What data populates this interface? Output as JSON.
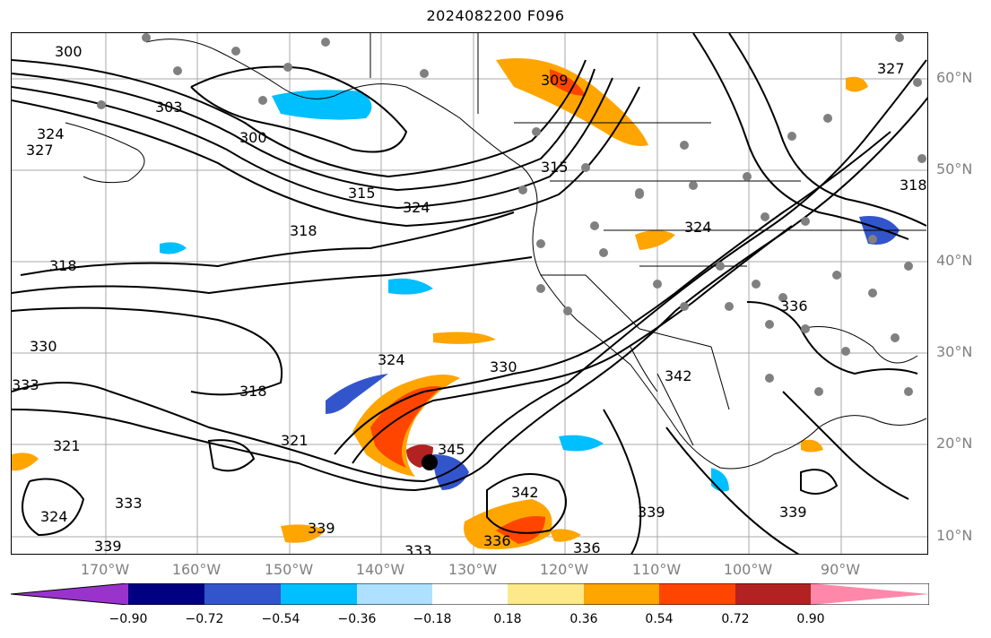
{
  "title": "2024082200 F096",
  "lat_labels": [
    "60°N",
    "50°N",
    "40°N",
    "30°N",
    "20°N",
    "10°N"
  ],
  "lon_labels": [
    "170°W",
    "160°W",
    "150°W",
    "140°W",
    "130°W",
    "120°W",
    "110°W",
    "100°W",
    "90°W"
  ],
  "contour_labels": [
    "300",
    "300",
    "303",
    "309",
    "315",
    "318",
    "318",
    "318",
    "321",
    "321",
    "324",
    "324",
    "324",
    "324",
    "324",
    "327",
    "327",
    "330",
    "330",
    "333",
    "333",
    "333",
    "336",
    "336",
    "336",
    "339",
    "339",
    "339",
    "339",
    "342",
    "342",
    "345",
    "318",
    "315"
  ],
  "colorbar": {
    "ticks": [
      "−0.90",
      "−0.72",
      "−0.54",
      "−0.36",
      "−0.18",
      "0.18",
      "0.36",
      "0.54",
      "0.72",
      "0.90"
    ],
    "colors": [
      "#9933cc",
      "#000080",
      "#3355cc",
      "#00bfff",
      "#aee0ff",
      "#ffffff",
      "#fde98a",
      "#ffa500",
      "#ff4500",
      "#b22222",
      "#ff88aa"
    ]
  },
  "markers": {
    "station_color": "#808080",
    "center_color": "#000000"
  }
}
